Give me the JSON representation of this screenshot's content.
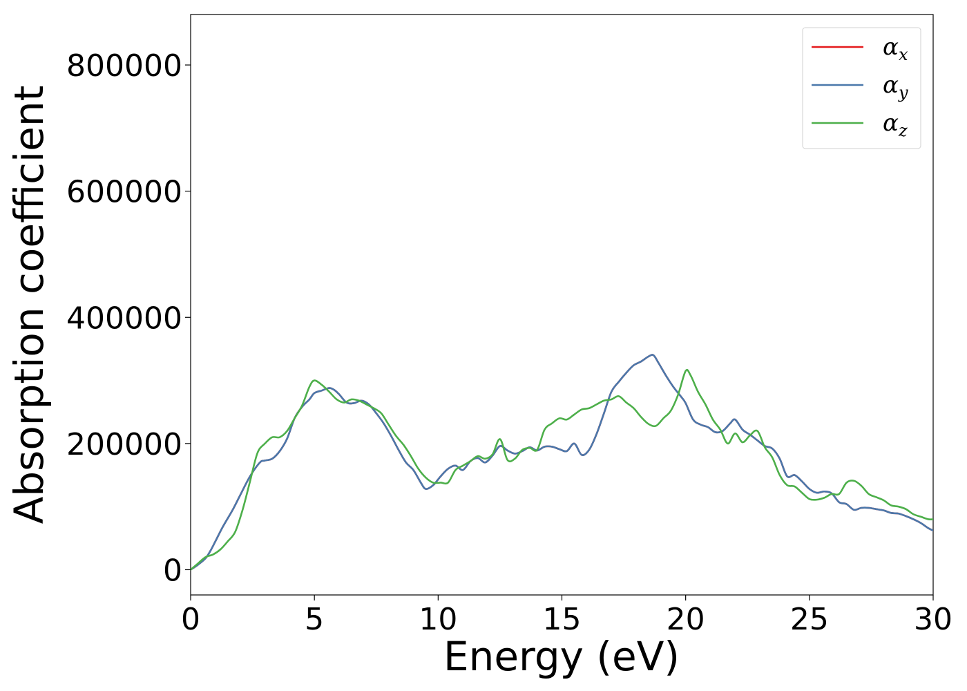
{
  "chart_data": {
    "type": "line",
    "title": "",
    "xlabel": "Energy (eV)",
    "ylabel": "Absorption coefficient",
    "xlim": [
      0,
      30
    ],
    "ylim": [
      -40000,
      880000
    ],
    "xticks": [
      0,
      5,
      10,
      15,
      20,
      25,
      30
    ],
    "yticks": [
      0,
      200000,
      400000,
      600000,
      800000
    ],
    "xtick_labels": [
      "0",
      "5",
      "10",
      "15",
      "20",
      "25",
      "30"
    ],
    "ytick_labels": [
      "0",
      "200000",
      "400000",
      "600000",
      "800000"
    ],
    "grid": false,
    "legend_position": "top-right",
    "series": [
      {
        "name": "α_x",
        "legend_base": "α",
        "legend_sub": "x",
        "color": "#e41a1c",
        "visible_under": "α_y",
        "x": [
          0,
          0.3,
          0.6,
          0.8,
          1.0,
          1.3,
          1.7,
          2.0,
          2.4,
          2.8,
          3.0,
          3.3,
          3.6,
          3.9,
          4.2,
          4.5,
          4.8,
          5.0,
          5.3,
          5.6,
          5.8,
          6.0,
          6.3,
          6.6,
          6.9,
          7.2,
          7.5,
          7.8,
          8.1,
          8.4,
          8.7,
          9.0,
          9.3,
          9.5,
          9.8,
          10.1,
          10.4,
          10.7,
          11.0,
          11.3,
          11.6,
          11.9,
          12.2,
          12.5,
          12.8,
          13.1,
          13.4,
          13.7,
          14.0,
          14.3,
          14.6,
          14.9,
          15.2,
          15.5,
          15.8,
          16.1,
          16.4,
          16.7,
          17.0,
          17.3,
          17.6,
          17.9,
          18.2,
          18.5,
          18.7,
          18.9,
          19.2,
          19.5,
          19.8,
          20.0,
          20.3,
          20.6,
          20.9,
          21.2,
          21.5,
          21.8,
          22.0,
          22.3,
          22.6,
          22.9,
          23.2,
          23.5,
          23.8,
          24.1,
          24.4,
          24.7,
          25.0,
          25.3,
          25.6,
          25.9,
          26.2,
          26.5,
          26.8,
          27.1,
          27.4,
          27.7,
          28.0,
          28.3,
          28.6,
          28.9,
          29.2,
          29.5,
          29.8,
          30.0
        ],
        "y": [
          0,
          8000,
          18000,
          30000,
          45000,
          68000,
          95000,
          118000,
          148000,
          170000,
          173000,
          176000,
          188000,
          208000,
          240000,
          258000,
          270000,
          280000,
          284000,
          288000,
          285000,
          278000,
          265000,
          264000,
          268000,
          262000,
          248000,
          232000,
          212000,
          190000,
          170000,
          158000,
          138000,
          128000,
          134000,
          148000,
          160000,
          165000,
          158000,
          172000,
          177000,
          170000,
          181000,
          196000,
          189000,
          184000,
          188000,
          194000,
          189000,
          195000,
          195000,
          191000,
          188000,
          200000,
          182000,
          190000,
          215000,
          248000,
          282000,
          298000,
          312000,
          324000,
          330000,
          338000,
          340000,
          328000,
          308000,
          290000,
          275000,
          264000,
          238000,
          230000,
          226000,
          218000,
          220000,
          232000,
          238000,
          222000,
          214000,
          205000,
          196000,
          192000,
          176000,
          148000,
          150000,
          140000,
          128000,
          122000,
          124000,
          121000,
          107000,
          104000,
          95000,
          98000,
          98000,
          96000,
          94000,
          90000,
          89000,
          85000,
          80000,
          74000,
          66000,
          62000
        ]
      },
      {
        "name": "α_y",
        "legend_base": "α",
        "legend_sub": "y",
        "color": "#4a78ab",
        "x": [
          0,
          0.3,
          0.6,
          0.8,
          1.0,
          1.3,
          1.7,
          2.0,
          2.4,
          2.8,
          3.0,
          3.3,
          3.6,
          3.9,
          4.2,
          4.5,
          4.8,
          5.0,
          5.3,
          5.6,
          5.8,
          6.0,
          6.3,
          6.6,
          6.9,
          7.2,
          7.5,
          7.8,
          8.1,
          8.4,
          8.7,
          9.0,
          9.3,
          9.5,
          9.8,
          10.1,
          10.4,
          10.7,
          11.0,
          11.3,
          11.6,
          11.9,
          12.2,
          12.5,
          12.8,
          13.1,
          13.4,
          13.7,
          14.0,
          14.3,
          14.6,
          14.9,
          15.2,
          15.5,
          15.8,
          16.1,
          16.4,
          16.7,
          17.0,
          17.3,
          17.6,
          17.9,
          18.2,
          18.5,
          18.7,
          18.9,
          19.2,
          19.5,
          19.8,
          20.0,
          20.3,
          20.6,
          20.9,
          21.2,
          21.5,
          21.8,
          22.0,
          22.3,
          22.6,
          22.9,
          23.2,
          23.5,
          23.8,
          24.1,
          24.4,
          24.7,
          25.0,
          25.3,
          25.6,
          25.9,
          26.2,
          26.5,
          26.8,
          27.1,
          27.4,
          27.7,
          28.0,
          28.3,
          28.6,
          28.9,
          29.2,
          29.5,
          29.8,
          30.0
        ],
        "y": [
          0,
          8000,
          18000,
          30000,
          45000,
          68000,
          95000,
          118000,
          148000,
          170000,
          173000,
          176000,
          188000,
          208000,
          240000,
          258000,
          270000,
          280000,
          284000,
          288000,
          285000,
          278000,
          265000,
          264000,
          268000,
          262000,
          248000,
          232000,
          212000,
          190000,
          170000,
          158000,
          138000,
          128000,
          134000,
          148000,
          160000,
          165000,
          158000,
          172000,
          177000,
          170000,
          181000,
          196000,
          189000,
          184000,
          188000,
          194000,
          189000,
          195000,
          195000,
          191000,
          188000,
          200000,
          182000,
          190000,
          215000,
          248000,
          282000,
          298000,
          312000,
          324000,
          330000,
          338000,
          340000,
          328000,
          308000,
          290000,
          275000,
          264000,
          238000,
          230000,
          226000,
          218000,
          220000,
          232000,
          238000,
          222000,
          214000,
          205000,
          196000,
          192000,
          176000,
          148000,
          150000,
          140000,
          128000,
          122000,
          124000,
          121000,
          107000,
          104000,
          95000,
          98000,
          98000,
          96000,
          94000,
          90000,
          89000,
          85000,
          80000,
          74000,
          66000,
          62000
        ]
      },
      {
        "name": "α_z",
        "legend_base": "α",
        "legend_sub": "z",
        "color": "#4daf4a",
        "x": [
          0,
          0.3,
          0.6,
          0.9,
          1.2,
          1.5,
          1.8,
          2.1,
          2.4,
          2.7,
          3.0,
          3.3,
          3.6,
          3.9,
          4.2,
          4.5,
          4.8,
          5.0,
          5.3,
          5.6,
          5.9,
          6.2,
          6.5,
          6.8,
          7.1,
          7.4,
          7.7,
          8.0,
          8.3,
          8.6,
          8.9,
          9.2,
          9.5,
          9.8,
          10.1,
          10.4,
          10.7,
          11.0,
          11.3,
          11.6,
          11.9,
          12.2,
          12.5,
          12.8,
          13.1,
          13.4,
          13.7,
          14.0,
          14.3,
          14.6,
          14.9,
          15.2,
          15.5,
          15.8,
          16.1,
          16.4,
          16.7,
          17.0,
          17.3,
          17.6,
          17.9,
          18.2,
          18.5,
          18.8,
          19.1,
          19.4,
          19.7,
          20.0,
          20.2,
          20.5,
          20.8,
          21.1,
          21.4,
          21.7,
          22.0,
          22.3,
          22.6,
          22.9,
          23.2,
          23.5,
          23.8,
          24.1,
          24.4,
          24.7,
          25.0,
          25.3,
          25.6,
          25.9,
          26.2,
          26.5,
          26.8,
          27.1,
          27.4,
          27.7,
          28.0,
          28.3,
          28.6,
          28.9,
          29.2,
          29.5,
          29.8,
          30.0
        ],
        "y": [
          0,
          10000,
          20000,
          24000,
          32000,
          45000,
          60000,
          95000,
          140000,
          185000,
          200000,
          210000,
          210000,
          220000,
          240000,
          260000,
          290000,
          300000,
          293000,
          282000,
          270000,
          265000,
          270000,
          268000,
          262000,
          256000,
          248000,
          230000,
          212000,
          198000,
          180000,
          160000,
          146000,
          138000,
          138000,
          138000,
          158000,
          165000,
          172000,
          180000,
          176000,
          183000,
          207000,
          174000,
          176000,
          190000,
          193000,
          190000,
          222000,
          232000,
          240000,
          238000,
          246000,
          254000,
          256000,
          262000,
          268000,
          270000,
          275000,
          265000,
          256000,
          242000,
          231000,
          228000,
          240000,
          252000,
          278000,
          315000,
          308000,
          282000,
          262000,
          238000,
          222000,
          200000,
          216000,
          202000,
          213000,
          220000,
          194000,
          178000,
          150000,
          134000,
          132000,
          122000,
          112000,
          111000,
          114000,
          120000,
          120000,
          138000,
          141000,
          133000,
          120000,
          115000,
          110000,
          102000,
          100000,
          96000,
          88000,
          84000,
          80000,
          80000
        ]
      }
    ]
  }
}
